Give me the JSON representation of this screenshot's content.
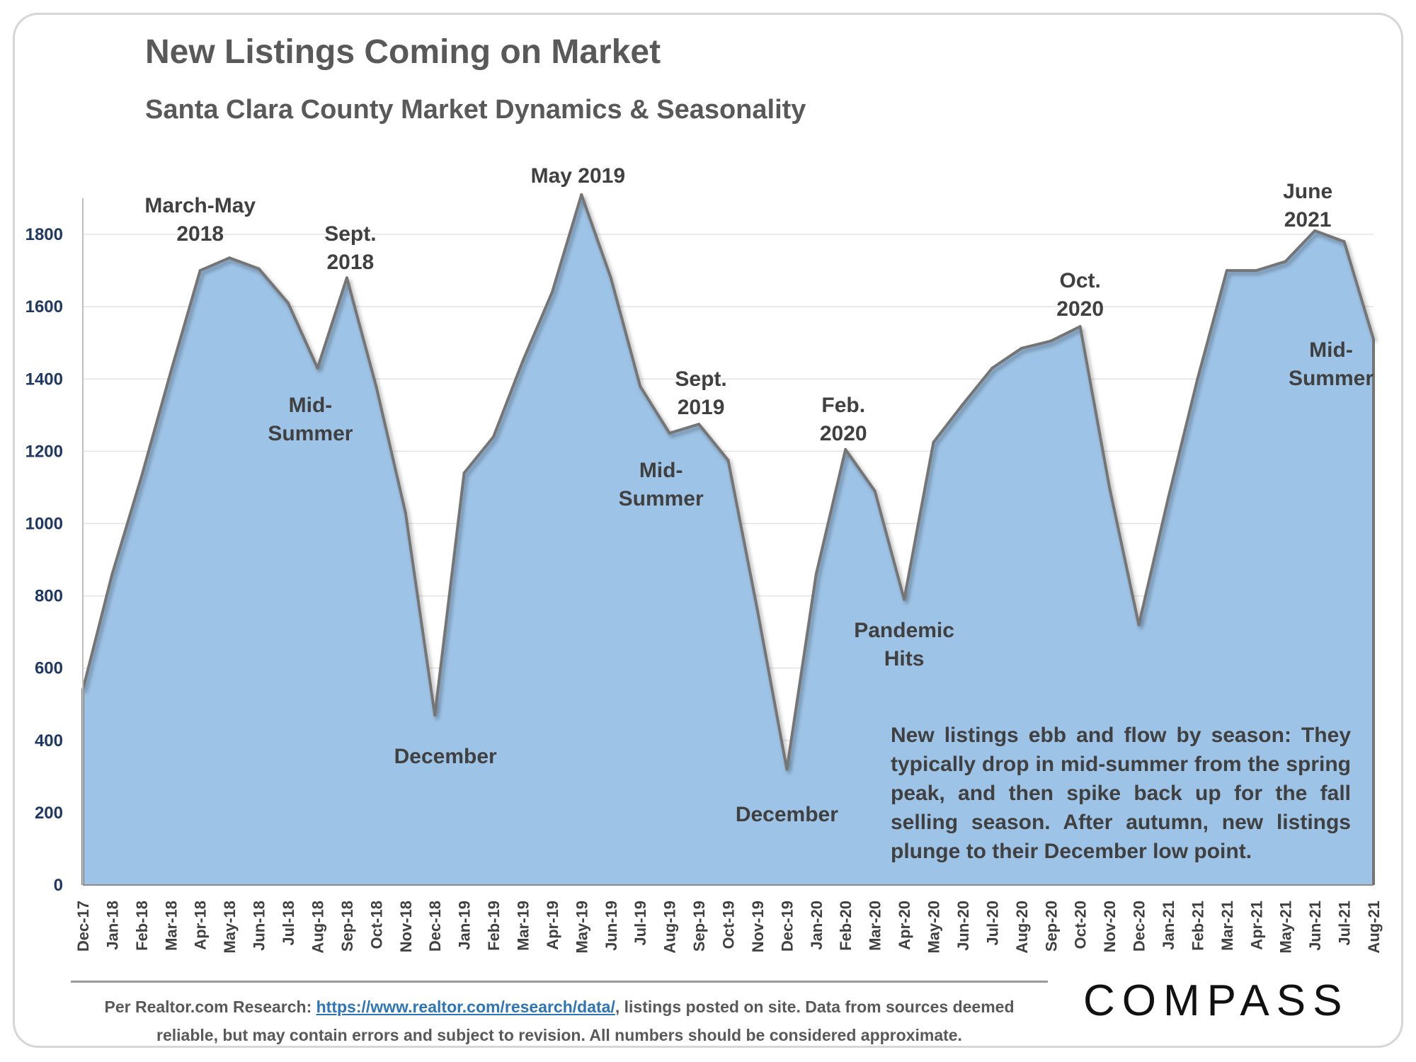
{
  "header": {
    "title": "New Listings Coming on Market",
    "subtitle": "Santa Clara County Market Dynamics & Seasonality"
  },
  "chart_data": {
    "type": "area",
    "title": "New Listings Coming on Market",
    "subtitle": "Santa Clara County Market Dynamics & Seasonality",
    "xlabel": "",
    "ylabel": "",
    "ylim": [
      0,
      1900
    ],
    "yticks": [
      0,
      200,
      400,
      600,
      800,
      1000,
      1200,
      1400,
      1600,
      1800
    ],
    "grid": true,
    "fill_color": "#9dc3e6",
    "line_color": "#757575",
    "categories": [
      "Dec-17",
      "Jan-18",
      "Feb-18",
      "Mar-18",
      "Apr-18",
      "May-18",
      "Jun-18",
      "Jul-18",
      "Aug-18",
      "Sep-18",
      "Oct-18",
      "Nov-18",
      "Dec-18",
      "Jan-19",
      "Feb-19",
      "Mar-19",
      "Apr-19",
      "May-19",
      "Jun-19",
      "Jul-19",
      "Aug-19",
      "Sep-19",
      "Oct-19",
      "Nov-19",
      "Dec-19",
      "Jan-20",
      "Feb-20",
      "Mar-20",
      "Apr-20",
      "May-20",
      "Jun-20",
      "Jul-20",
      "Aug-20",
      "Sep-20",
      "Oct-20",
      "Nov-20",
      "Dec-20",
      "Jan-21",
      "Feb-21",
      "Mar-21",
      "Apr-21",
      "May-21",
      "Jun-21",
      "Jul-21",
      "Aug-21"
    ],
    "values": [
      540,
      860,
      1130,
      1420,
      1700,
      1735,
      1705,
      1610,
      1430,
      1680,
      1380,
      1030,
      470,
      1140,
      1240,
      1450,
      1640,
      1910,
      1680,
      1380,
      1250,
      1275,
      1175,
      760,
      320,
      860,
      1205,
      1090,
      790,
      1225,
      1330,
      1430,
      1485,
      1505,
      1545,
      1100,
      720,
      1070,
      1400,
      1700,
      1700,
      1725,
      1810,
      1780,
      1510
    ],
    "annotations": [
      {
        "lines": [
          "March-May",
          "2018"
        ],
        "category": "Apr-18",
        "value": 1735,
        "color": "#404040"
      },
      {
        "lines": [
          "Sept.",
          "2018"
        ],
        "category": "Sep-18",
        "value": 1680,
        "color": "#404040"
      },
      {
        "lines": [
          "Mid-",
          "Summer"
        ],
        "category": "Aug-18",
        "value": 1430,
        "color": "#404040"
      },
      {
        "lines": [
          "December"
        ],
        "category": "Dec-18",
        "value": 470,
        "color": "#404040"
      },
      {
        "lines": [
          "May 2019"
        ],
        "category": "May-19",
        "value": 1910,
        "color": "#404040"
      },
      {
        "lines": [
          "Sept.",
          "2019"
        ],
        "category": "Sep-19",
        "value": 1275,
        "color": "#404040"
      },
      {
        "lines": [
          "Mid-",
          "Summer"
        ],
        "category": "Aug-19",
        "value": 1250,
        "color": "#404040"
      },
      {
        "lines": [
          "December"
        ],
        "category": "Dec-19",
        "value": 320,
        "color": "#404040"
      },
      {
        "lines": [
          "Feb.",
          "2020"
        ],
        "category": "Feb-20",
        "value": 1205,
        "color": "#404040"
      },
      {
        "lines": [
          "Pandemic",
          "Hits"
        ],
        "category": "Apr-20",
        "value": 790,
        "color": "#c00000"
      },
      {
        "lines": [
          "Oct.",
          "2020"
        ],
        "category": "Oct-20",
        "value": 1545,
        "color": "#404040"
      },
      {
        "lines": [
          "June",
          "2021"
        ],
        "category": "Jun-21",
        "value": 1810,
        "color": "#404040"
      },
      {
        "lines": [
          "Mid-",
          "Summer"
        ],
        "category": "Aug-21",
        "value": 1510,
        "color": "#404040"
      }
    ]
  },
  "note": "New listings ebb and flow by season: They typically drop in mid-summer from the spring peak, and then spike back up for the fall selling season.  After autumn, new listings plunge to their December low point.",
  "footer": {
    "prefix": "Per Realtor.com Research: ",
    "link_text": "https://www.realtor.com/research/data/",
    "suffix": ", listings posted on site. Data from sources deemed reliable, but may contain errors and subject to revision. All numbers should be considered approximate."
  },
  "logo": "COMPASS"
}
